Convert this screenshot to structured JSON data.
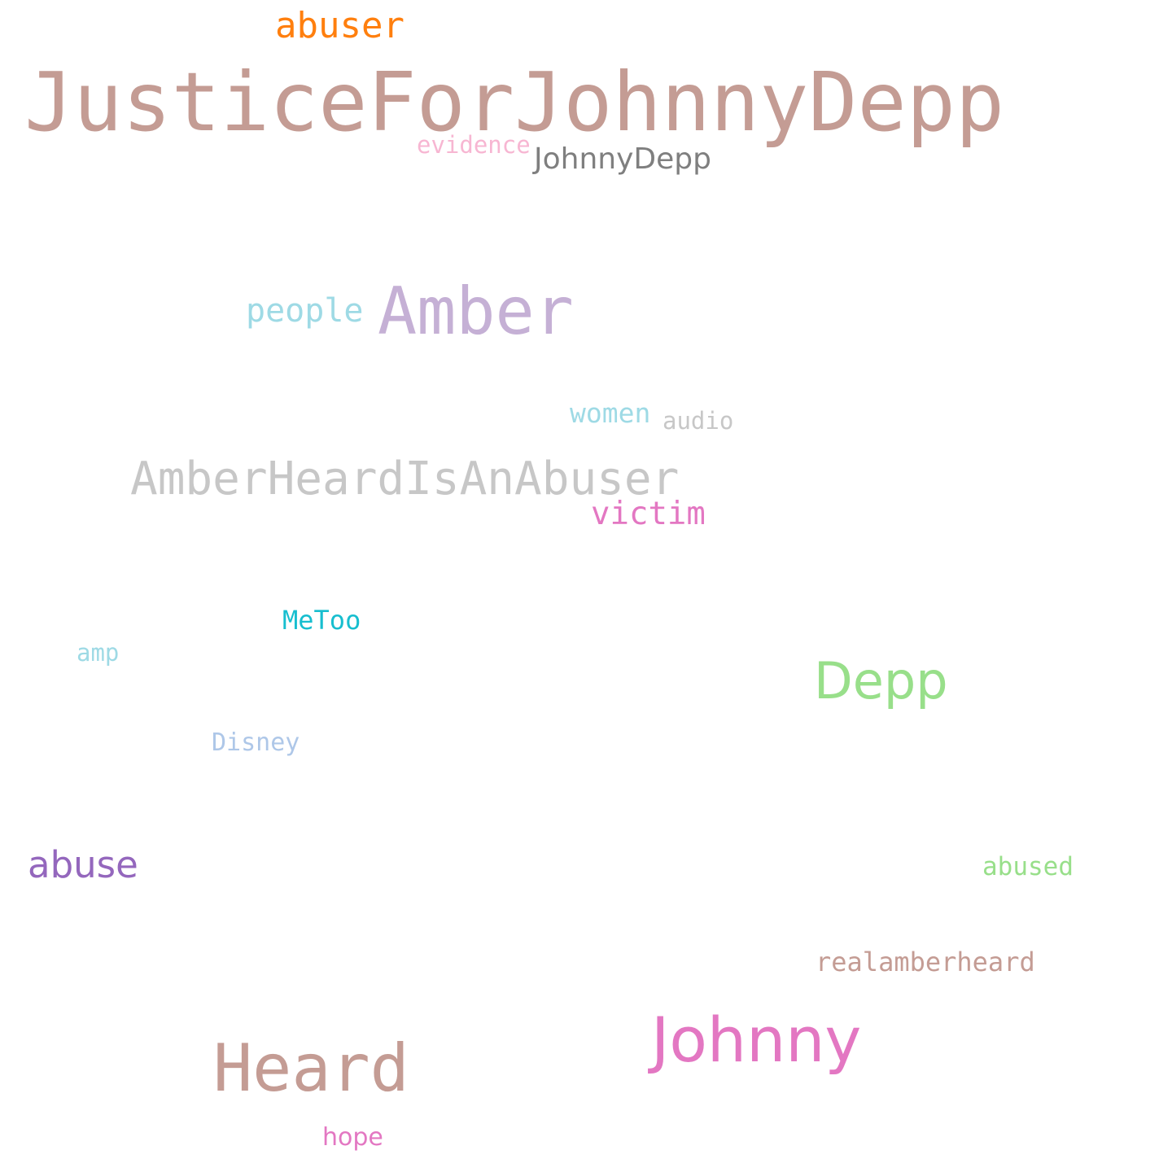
{
  "words": [
    {
      "key": "justicefor",
      "text": "JusticeForJohnnyDepp",
      "color": "#c49c94"
    },
    {
      "key": "abuser",
      "text": "abuser",
      "color": "#ff7f0e"
    },
    {
      "key": "evidence",
      "text": "evidence",
      "color": "#f7b6d2"
    },
    {
      "key": "johnnydepp",
      "text": "JohnnyDepp",
      "color": "#7f7f7f"
    },
    {
      "key": "people",
      "text": "people",
      "color": "#9edae5"
    },
    {
      "key": "amber",
      "text": "Amber",
      "color": "#c5b0d5"
    },
    {
      "key": "women",
      "text": "women",
      "color": "#9edae5"
    },
    {
      "key": "audio",
      "text": "audio",
      "color": "#c7c7c7"
    },
    {
      "key": "amberheardisanabuser",
      "text": "AmberHeardIsAnAbuser",
      "color": "#c7c7c7"
    },
    {
      "key": "victim",
      "text": "victim",
      "color": "#e377c2"
    },
    {
      "key": "metoo",
      "text": "MeToo",
      "color": "#17becf"
    },
    {
      "key": "amp",
      "text": "amp",
      "color": "#9edae5"
    },
    {
      "key": "depp",
      "text": "Depp",
      "color": "#98df8a"
    },
    {
      "key": "disney",
      "text": "Disney",
      "color": "#aec7e8"
    },
    {
      "key": "abuse",
      "text": "abuse",
      "color": "#9467bd"
    },
    {
      "key": "abused",
      "text": "abused",
      "color": "#98df8a"
    },
    {
      "key": "realamberheard",
      "text": "realamberheard",
      "color": "#c49c94"
    },
    {
      "key": "johnny",
      "text": "Johnny",
      "color": "#e377c2"
    },
    {
      "key": "heard",
      "text": "Heard",
      "color": "#c49c94"
    },
    {
      "key": "hope",
      "text": "hope",
      "color": "#e377c2"
    }
  ]
}
